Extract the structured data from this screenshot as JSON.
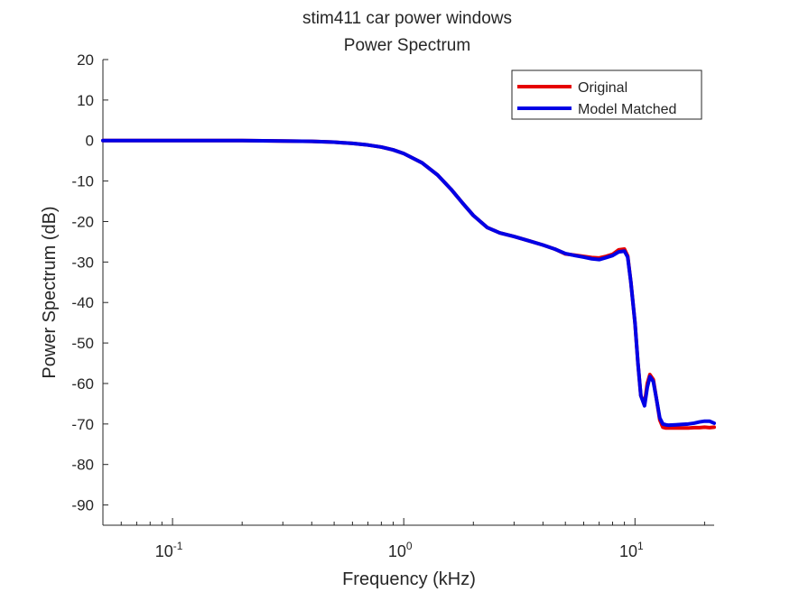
{
  "chart_data": {
    "type": "line",
    "title": "stim411 car power windows",
    "subtitle": "Power Spectrum",
    "xlabel": "Frequency (kHz)",
    "ylabel": "Power Spectrum (dB)",
    "x_scale": "log",
    "xlim": [
      0.05,
      22
    ],
    "ylim": [
      -95,
      20
    ],
    "x_ticks": [
      {
        "value": 0.1,
        "base": "10",
        "exp": "-1"
      },
      {
        "value": 1,
        "base": "10",
        "exp": "0"
      },
      {
        "value": 10,
        "base": "10",
        "exp": "1"
      }
    ],
    "y_ticks": [
      {
        "value": 20,
        "label": "20"
      },
      {
        "value": 10,
        "label": "10"
      },
      {
        "value": 0,
        "label": "0"
      },
      {
        "value": -10,
        "label": "-10"
      },
      {
        "value": -20,
        "label": "-20"
      },
      {
        "value": -30,
        "label": "-30"
      },
      {
        "value": -40,
        "label": "-40"
      },
      {
        "value": -50,
        "label": "-50"
      },
      {
        "value": -60,
        "label": "-60"
      },
      {
        "value": -70,
        "label": "-70"
      },
      {
        "value": -80,
        "label": "-80"
      },
      {
        "value": -90,
        "label": "-90"
      }
    ],
    "grid": false,
    "legend_position": "top-right",
    "series": [
      {
        "name": "Original",
        "color": "#e60000",
        "x": [
          0.05,
          0.1,
          0.2,
          0.3,
          0.4,
          0.5,
          0.6,
          0.7,
          0.8,
          0.9,
          1.0,
          1.2,
          1.4,
          1.6,
          1.8,
          2.0,
          2.3,
          2.6,
          3.0,
          3.5,
          4.0,
          4.5,
          5.0,
          5.5,
          6.0,
          6.5,
          7.0,
          7.5,
          8.0,
          8.5,
          9.0,
          9.3,
          9.6,
          10.0,
          10.3,
          10.6,
          11.0,
          11.3,
          11.6,
          12.0,
          12.4,
          12.8,
          13.2,
          13.6,
          14.0,
          15.0,
          16.0,
          17.0,
          18.0,
          19.0,
          20.0,
          21.0,
          22.0
        ],
        "y": [
          0,
          0,
          0,
          -0.1,
          -0.2,
          -0.4,
          -0.7,
          -1.1,
          -1.6,
          -2.3,
          -3.2,
          -5.5,
          -8.5,
          -12.0,
          -15.5,
          -18.5,
          -21.5,
          -22.8,
          -23.7,
          -24.8,
          -25.8,
          -26.8,
          -28.0,
          -28.3,
          -28.6,
          -28.9,
          -29.0,
          -28.6,
          -28.1,
          -27.0,
          -26.8,
          -28.5,
          -35.0,
          -45.0,
          -55.0,
          -63.0,
          -65.0,
          -60.0,
          -57.8,
          -59.0,
          -64.0,
          -69.0,
          -70.8,
          -71.0,
          -71.0,
          -71.0,
          -71.0,
          -71.0,
          -70.9,
          -70.9,
          -70.8,
          -70.9,
          -70.8
        ]
      },
      {
        "name": "Model Matched",
        "color": "#0000e6",
        "x": [
          0.05,
          0.1,
          0.2,
          0.3,
          0.4,
          0.5,
          0.6,
          0.7,
          0.8,
          0.9,
          1.0,
          1.2,
          1.4,
          1.6,
          1.8,
          2.0,
          2.3,
          2.6,
          3.0,
          3.5,
          4.0,
          4.5,
          5.0,
          5.5,
          6.0,
          6.5,
          7.0,
          7.5,
          8.0,
          8.5,
          9.0,
          9.3,
          9.6,
          10.0,
          10.3,
          10.6,
          11.0,
          11.3,
          11.6,
          12.0,
          12.4,
          12.8,
          13.2,
          13.6,
          14.0,
          15.0,
          16.0,
          17.0,
          18.0,
          19.0,
          20.0,
          21.0,
          22.0
        ],
        "y": [
          0,
          0,
          0,
          -0.1,
          -0.2,
          -0.4,
          -0.7,
          -1.1,
          -1.6,
          -2.3,
          -3.2,
          -5.5,
          -8.5,
          -12.0,
          -15.5,
          -18.5,
          -21.5,
          -22.8,
          -23.7,
          -24.8,
          -25.8,
          -26.8,
          -27.9,
          -28.4,
          -28.8,
          -29.2,
          -29.4,
          -28.9,
          -28.4,
          -27.5,
          -27.3,
          -28.8,
          -35.0,
          -45.0,
          -55.0,
          -63.0,
          -65.5,
          -61.0,
          -58.3,
          -59.5,
          -64.0,
          -68.5,
          -70.0,
          -70.2,
          -70.3,
          -70.2,
          -70.1,
          -70.0,
          -69.8,
          -69.5,
          -69.3,
          -69.3,
          -69.8
        ]
      }
    ]
  }
}
